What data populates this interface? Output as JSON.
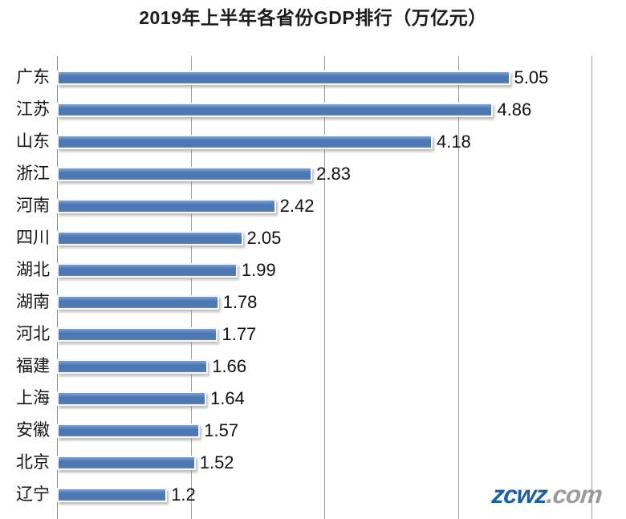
{
  "title": "2019年上半年各省份GDP排行（万亿元）",
  "colors": {
    "bar_fill": "#4d78b6",
    "bar_top": "#7d9fd0",
    "bar_bottom": "#5a83bd",
    "gridline": "#9e9e9e",
    "axis_line": "#8a8a8a",
    "watermark_brand": "#1a5fa8",
    "watermark_suffix": "#9b9b9b"
  },
  "watermark": {
    "brand": "zcwz",
    "suffix": ".com"
  },
  "chart_data": {
    "type": "bar",
    "orientation": "horizontal",
    "title": "2019年上半年各省份GDP排行（万亿元）",
    "unit": "万亿元",
    "categories": [
      "广东",
      "江苏",
      "山东",
      "浙江",
      "河南",
      "四川",
      "湖北",
      "湖南",
      "河北",
      "福建",
      "上海",
      "安徽",
      "北京",
      "辽宁"
    ],
    "values": [
      5.05,
      4.86,
      4.18,
      2.83,
      2.42,
      2.05,
      1.99,
      1.78,
      1.77,
      1.66,
      1.64,
      1.57,
      1.52,
      1.2
    ],
    "value_labels": [
      "5.05",
      "4.86",
      "4.18",
      "2.83",
      "2.42",
      "2.05",
      "1.99",
      "1.78",
      "1.77",
      "1.66",
      "1.64",
      "1.57",
      "1.52",
      "1.2"
    ],
    "xlim": [
      0,
      6
    ],
    "gridlines_x": [
      0,
      1.5,
      3,
      4.5,
      6
    ],
    "x_tick_labels_visible": false,
    "grid": true,
    "legend": false,
    "xlabel": "",
    "ylabel": ""
  }
}
